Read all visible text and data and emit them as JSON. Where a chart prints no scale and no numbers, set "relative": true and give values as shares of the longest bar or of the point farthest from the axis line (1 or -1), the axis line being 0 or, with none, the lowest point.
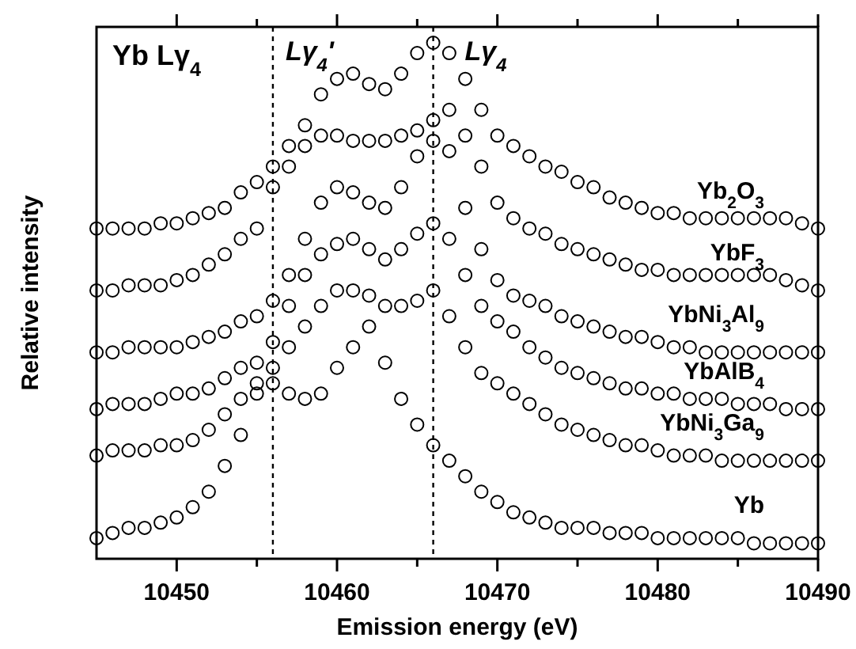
{
  "chart_data": {
    "type": "scatter",
    "title": "Yb Lγ$_{4}$",
    "xlabel": "Emission energy (eV)",
    "ylabel": "Relative intensity",
    "relative": true,
    "marker": "circle",
    "grid": false,
    "xlim": [
      10445,
      10490
    ],
    "xticks": [
      10450,
      {
        "value": 10455,
        "label": null
      },
      10460,
      {
        "value": 10465,
        "label": null
      },
      10470,
      {
        "value": 10475,
        "label": null
      },
      10480,
      {
        "value": 10485,
        "label": null
      },
      10490
    ],
    "x": [
      10445,
      10446,
      10447,
      10448,
      10449,
      10450,
      10451,
      10452,
      10453,
      10454,
      10455,
      10456,
      10457,
      10458,
      10459,
      10460,
      10461,
      10462,
      10463,
      10464,
      10465,
      10466,
      10467,
      10468,
      10469,
      10470,
      10471,
      10472,
      10473,
      10474,
      10475,
      10476,
      10477,
      10478,
      10479,
      10480,
      10481,
      10482,
      10483,
      10484,
      10485,
      10486,
      10487,
      10488,
      10489,
      10490
    ],
    "ref_lines": [
      {
        "axis": "x",
        "value": 10456,
        "label": "Lγ$_{4}$'",
        "line_style": "dashed",
        "color": "#000000"
      },
      {
        "axis": "x",
        "value": 10466,
        "label": "Lγ$_{4}$",
        "line_style": "dashed",
        "color": "#000000"
      }
    ],
    "series": [
      {
        "name": "Yb$_{2}$O$_{3}$",
        "color": "#000000",
        "values": [
          0.64,
          0.64,
          0.64,
          0.64,
          0.65,
          0.65,
          0.66,
          0.67,
          0.68,
          0.71,
          0.73,
          0.76,
          0.8,
          0.84,
          0.9,
          0.93,
          0.94,
          0.92,
          0.91,
          0.94,
          0.98,
          1,
          0.98,
          0.93,
          0.87,
          0.82,
          0.8,
          0.78,
          0.76,
          0.75,
          0.73,
          0.72,
          0.7,
          0.69,
          0.68,
          0.67,
          0.67,
          0.66,
          0.66,
          0.66,
          0.66,
          0.66,
          0.66,
          0.66,
          0.65,
          0.64
        ]
      },
      {
        "name": "YbF$_{3}$",
        "color": "#000000",
        "values": [
          0.52,
          0.52,
          0.53,
          0.53,
          0.53,
          0.54,
          0.55,
          0.57,
          0.59,
          0.62,
          0.64,
          0.72,
          0.76,
          0.8,
          0.82,
          0.82,
          0.81,
          0.81,
          0.81,
          0.82,
          0.83,
          0.85,
          0.87,
          0.82,
          0.76,
          0.69,
          0.66,
          0.64,
          0.63,
          0.61,
          0.6,
          0.59,
          0.58,
          0.57,
          0.56,
          0.56,
          0.55,
          0.55,
          0.55,
          0.55,
          0.55,
          0.55,
          0.55,
          0.54,
          0.53,
          0.52
        ]
      },
      {
        "name": "YbNi$_{3}$Al$_{9}$",
        "color": "#000000",
        "values": [
          0.4,
          0.4,
          0.41,
          0.41,
          0.41,
          0.41,
          0.42,
          0.43,
          0.44,
          0.46,
          0.47,
          0.5,
          0.55,
          0.62,
          0.69,
          0.72,
          0.71,
          0.69,
          0.68,
          0.72,
          0.78,
          0.81,
          0.79,
          0.68,
          0.6,
          0.54,
          0.51,
          0.5,
          0.49,
          0.47,
          0.46,
          0.45,
          0.44,
          0.43,
          0.43,
          0.42,
          0.41,
          0.41,
          0.4,
          0.4,
          0.4,
          0.4,
          0.4,
          0.4,
          0.4,
          0.4
        ]
      },
      {
        "name": "YbAlB$_{4}$",
        "color": "#000000",
        "values": [
          0.29,
          0.3,
          0.3,
          0.3,
          0.31,
          0.32,
          0.32,
          0.33,
          0.35,
          0.37,
          0.38,
          0.42,
          0.49,
          0.55,
          0.59,
          0.61,
          0.62,
          0.6,
          0.58,
          0.6,
          0.63,
          0.65,
          0.62,
          0.55,
          0.49,
          0.46,
          0.44,
          0.41,
          0.39,
          0.37,
          0.36,
          0.35,
          0.34,
          0.33,
          0.33,
          0.32,
          0.32,
          0.31,
          0.31,
          0.31,
          0.3,
          0.3,
          0.3,
          0.29,
          0.29,
          0.29
        ]
      },
      {
        "name": "YbNi$_{3}$Ga$_{9}$",
        "color": "#000000",
        "values": [
          0.2,
          0.21,
          0.21,
          0.21,
          0.22,
          0.22,
          0.23,
          0.25,
          0.28,
          0.31,
          0.34,
          0.37,
          0.41,
          0.45,
          0.49,
          0.52,
          0.52,
          0.51,
          0.49,
          0.49,
          0.5,
          0.52,
          0.47,
          0.41,
          0.36,
          0.34,
          0.32,
          0.3,
          0.28,
          0.26,
          0.25,
          0.24,
          0.23,
          0.22,
          0.22,
          0.21,
          0.2,
          0.2,
          0.2,
          0.19,
          0.19,
          0.19,
          0.19,
          0.19,
          0.19,
          0.19
        ]
      },
      {
        "name": "Yb",
        "color": "#000000",
        "values": [
          0.04,
          0.05,
          0.06,
          0.06,
          0.07,
          0.08,
          0.1,
          0.13,
          0.18,
          0.24,
          0.32,
          0.34,
          0.32,
          0.31,
          0.32,
          0.37,
          0.41,
          0.45,
          0.38,
          0.31,
          0.26,
          0.22,
          0.19,
          0.16,
          0.13,
          0.11,
          0.09,
          0.08,
          0.07,
          0.06,
          0.06,
          0.06,
          0.05,
          0.05,
          0.05,
          0.04,
          0.04,
          0.04,
          0.04,
          0.04,
          0.04,
          0.03,
          0.03,
          0.03,
          0.03,
          0.03
        ]
      }
    ]
  }
}
